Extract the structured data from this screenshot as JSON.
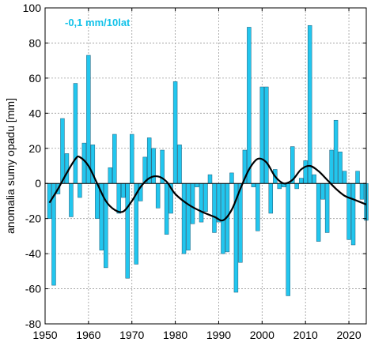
{
  "chart_data": {
    "type": "bar",
    "annotation": "-0,1 mm/10lat",
    "ylabel": "anomalia sumy opadu [mm]",
    "xlabel": "",
    "xlim": [
      1950,
      2024
    ],
    "ylim": [
      -80,
      100
    ],
    "xticks": [
      1950,
      1960,
      1970,
      1980,
      1990,
      2000,
      2010,
      2020
    ],
    "yticks": [
      -80,
      -60,
      -40,
      -20,
      0,
      20,
      40,
      60,
      80,
      100
    ],
    "grid": true,
    "colors": {
      "bar": "#22c6ee",
      "bar_edge": "#1e5b78",
      "trend": "#000000",
      "annotation": "#12c2e9"
    },
    "series": [
      {
        "values": [
          [
            1951,
            -20
          ],
          [
            1952,
            -58
          ],
          [
            1953,
            -6
          ],
          [
            1954,
            37
          ],
          [
            1955,
            17
          ],
          [
            1956,
            -19
          ],
          [
            1957,
            57
          ],
          [
            1958,
            -8
          ],
          [
            1959,
            23
          ],
          [
            1960,
            73
          ],
          [
            1961,
            22
          ],
          [
            1962,
            -20
          ],
          [
            1963,
            -38
          ],
          [
            1964,
            -48
          ],
          [
            1965,
            9
          ],
          [
            1966,
            28
          ],
          [
            1967,
            -17
          ],
          [
            1968,
            -8
          ],
          [
            1969,
            -54
          ],
          [
            1970,
            28
          ],
          [
            1971,
            -46
          ],
          [
            1972,
            -10
          ],
          [
            1973,
            15
          ],
          [
            1974,
            26
          ],
          [
            1975,
            20
          ],
          [
            1976,
            -14
          ],
          [
            1977,
            19
          ],
          [
            1978,
            -29
          ],
          [
            1979,
            -17
          ],
          [
            1980,
            58
          ],
          [
            1981,
            22
          ],
          [
            1982,
            -40
          ],
          [
            1983,
            -38
          ],
          [
            1984,
            -23
          ],
          [
            1985,
            -2
          ],
          [
            1986,
            -22
          ],
          [
            1987,
            -16
          ],
          [
            1988,
            5
          ],
          [
            1989,
            -28
          ],
          [
            1990,
            -22
          ],
          [
            1991,
            -40
          ],
          [
            1992,
            -39
          ],
          [
            1993,
            6
          ],
          [
            1994,
            -62
          ],
          [
            1995,
            -45
          ],
          [
            1996,
            19
          ],
          [
            1997,
            89
          ],
          [
            1998,
            -2
          ],
          [
            1999,
            -27
          ],
          [
            2000,
            55
          ],
          [
            2001,
            55
          ],
          [
            2002,
            -17
          ],
          [
            2003,
            8
          ],
          [
            2004,
            -3
          ],
          [
            2005,
            -2
          ],
          [
            2006,
            -64
          ],
          [
            2007,
            21
          ],
          [
            2008,
            -3
          ],
          [
            2009,
            3
          ],
          [
            2010,
            13
          ],
          [
            2011,
            90
          ],
          [
            2012,
            5
          ],
          [
            2013,
            -33
          ],
          [
            2014,
            -9
          ],
          [
            2015,
            -28
          ],
          [
            2016,
            19
          ],
          [
            2017,
            36
          ],
          [
            2018,
            18
          ],
          [
            2019,
            7
          ],
          [
            2020,
            -32
          ],
          [
            2021,
            -35
          ],
          [
            2022,
            7
          ],
          [
            2023,
            -9
          ],
          [
            2024,
            -21
          ]
        ]
      }
    ],
    "smoothed": [
      [
        1951,
        -11
      ],
      [
        1953,
        -3
      ],
      [
        1955,
        6
      ],
      [
        1957,
        14
      ],
      [
        1958,
        15
      ],
      [
        1960,
        10
      ],
      [
        1962,
        0
      ],
      [
        1964,
        -10
      ],
      [
        1966,
        -15
      ],
      [
        1968,
        -16
      ],
      [
        1970,
        -10
      ],
      [
        1972,
        -2
      ],
      [
        1974,
        3
      ],
      [
        1976,
        4
      ],
      [
        1978,
        1
      ],
      [
        1980,
        -6
      ],
      [
        1983,
        -12
      ],
      [
        1986,
        -16
      ],
      [
        1989,
        -19
      ],
      [
        1991,
        -21
      ],
      [
        1993,
        -15
      ],
      [
        1995,
        -3
      ],
      [
        1997,
        8
      ],
      [
        1999,
        14
      ],
      [
        2001,
        12
      ],
      [
        2003,
        4
      ],
      [
        2005,
        0
      ],
      [
        2007,
        2
      ],
      [
        2009,
        8
      ],
      [
        2011,
        10
      ],
      [
        2013,
        7
      ],
      [
        2015,
        2
      ],
      [
        2017,
        -3
      ],
      [
        2019,
        -7
      ],
      [
        2021,
        -9
      ],
      [
        2024,
        -12
      ]
    ]
  }
}
